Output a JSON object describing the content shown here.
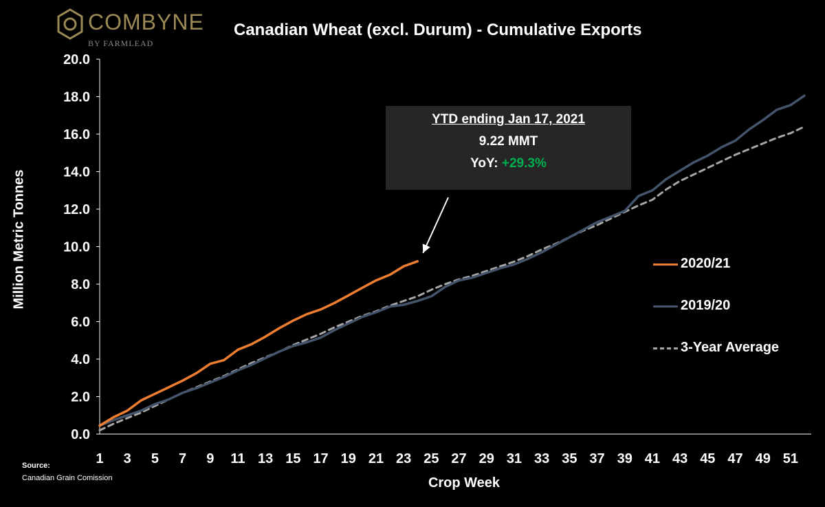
{
  "logo": {
    "brand": "COMBYNE",
    "sub": "BY FARMLEAD",
    "icon": "hexagon-logo-icon",
    "color": "#9b8a55"
  },
  "chart_data": {
    "type": "line",
    "title": "Canadian Wheat (excl. Durum) - Cumulative Exports",
    "xlabel": "Crop Week",
    "ylabel": "Million Metric Tonnes",
    "xlim": [
      1,
      52
    ],
    "ylim": [
      0,
      20
    ],
    "x_ticks": [
      "1",
      "3",
      "5",
      "7",
      "9",
      "11",
      "13",
      "15",
      "17",
      "19",
      "21",
      "23",
      "25",
      "27",
      "29",
      "31",
      "33",
      "35",
      "37",
      "39",
      "41",
      "43",
      "45",
      "47",
      "49",
      "51"
    ],
    "y_ticks": [
      "0.0",
      "2.0",
      "4.0",
      "6.0",
      "8.0",
      "10.0",
      "12.0",
      "14.0",
      "16.0",
      "18.0",
      "20.0"
    ],
    "grid": false,
    "legend_position": "right",
    "series": [
      {
        "name": "2020/21",
        "color": "#ed7d31",
        "style": "solid",
        "x": [
          1,
          2,
          3,
          4,
          5,
          6,
          7,
          8,
          9,
          10,
          11,
          12,
          13,
          14,
          15,
          16,
          17,
          18,
          19,
          20,
          21,
          22,
          23,
          24
        ],
        "values": [
          0.45,
          0.9,
          1.25,
          1.8,
          2.15,
          2.5,
          2.85,
          3.25,
          3.75,
          3.95,
          4.5,
          4.8,
          5.2,
          5.65,
          6.05,
          6.4,
          6.65,
          7.0,
          7.4,
          7.8,
          8.2,
          8.5,
          8.95,
          9.22
        ]
      },
      {
        "name": "2019/20",
        "color": "#44546a",
        "style": "solid",
        "x": [
          1,
          2,
          3,
          4,
          5,
          6,
          7,
          8,
          9,
          10,
          11,
          12,
          13,
          14,
          15,
          16,
          17,
          18,
          19,
          20,
          21,
          22,
          23,
          24,
          25,
          26,
          27,
          28,
          29,
          30,
          31,
          32,
          33,
          34,
          35,
          36,
          37,
          38,
          39,
          40,
          41,
          42,
          43,
          44,
          45,
          46,
          47,
          48,
          49,
          50,
          51,
          52
        ],
        "values": [
          0.45,
          0.75,
          1.0,
          1.25,
          1.6,
          1.85,
          2.2,
          2.45,
          2.75,
          3.05,
          3.4,
          3.7,
          4.05,
          4.4,
          4.7,
          4.9,
          5.15,
          5.55,
          5.9,
          6.25,
          6.5,
          6.8,
          6.9,
          7.1,
          7.35,
          7.85,
          8.2,
          8.35,
          8.6,
          8.85,
          9.05,
          9.35,
          9.7,
          10.1,
          10.5,
          10.9,
          11.3,
          11.6,
          11.9,
          12.7,
          13.0,
          13.6,
          14.05,
          14.5,
          14.85,
          15.3,
          15.65,
          16.25,
          16.75,
          17.3,
          17.55,
          18.05
        ]
      },
      {
        "name": "3-Year Average",
        "color": "#a6a6a6",
        "style": "dashed",
        "x": [
          1,
          2,
          3,
          4,
          5,
          6,
          7,
          8,
          9,
          10,
          11,
          12,
          13,
          14,
          15,
          16,
          17,
          18,
          19,
          20,
          21,
          22,
          23,
          24,
          25,
          26,
          27,
          28,
          29,
          30,
          31,
          32,
          33,
          34,
          35,
          36,
          37,
          38,
          39,
          40,
          41,
          42,
          43,
          44,
          45,
          46,
          47,
          48,
          49,
          50,
          51,
          52
        ],
        "values": [
          0.2,
          0.55,
          0.85,
          1.15,
          1.5,
          1.85,
          2.2,
          2.5,
          2.8,
          3.1,
          3.45,
          3.8,
          4.1,
          4.4,
          4.75,
          5.05,
          5.35,
          5.7,
          6.0,
          6.3,
          6.55,
          6.85,
          7.1,
          7.35,
          7.7,
          8.0,
          8.25,
          8.45,
          8.7,
          8.95,
          9.2,
          9.5,
          9.85,
          10.15,
          10.5,
          10.85,
          11.15,
          11.5,
          11.85,
          12.2,
          12.5,
          13.05,
          13.5,
          13.85,
          14.2,
          14.55,
          14.9,
          15.2,
          15.5,
          15.8,
          16.05,
          16.4
        ]
      }
    ],
    "annotation": {
      "title": "YTD ending Jan 17, 2021",
      "value": "9.22 MMT",
      "yoy_label": "YoY:",
      "yoy_value": "+29.3%",
      "yoy_color": "#00b050",
      "arrow_target_week": 24,
      "arrow_target_value": 9.22
    }
  },
  "source": {
    "title": "Source:",
    "text": "Canadian Grain Comission"
  }
}
